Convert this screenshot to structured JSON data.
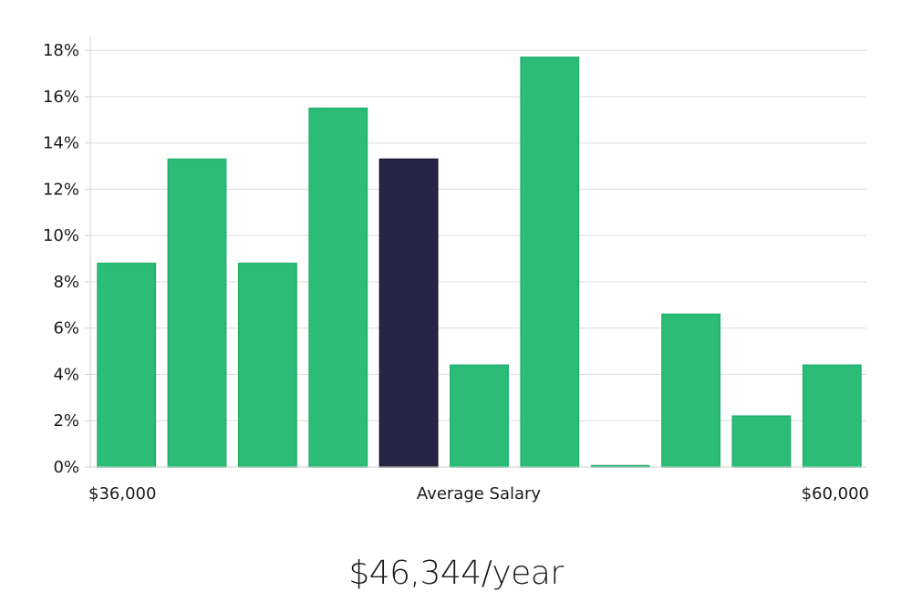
{
  "chart_data": {
    "type": "bar",
    "categories": [
      "",
      "",
      "",
      "",
      "",
      "",
      "",
      "",
      "",
      "",
      ""
    ],
    "values": [
      8.8,
      13.3,
      8.8,
      15.5,
      13.3,
      4.4,
      17.7,
      0.0,
      6.6,
      2.2,
      4.4
    ],
    "highlight_index": 4,
    "ylim": [
      0,
      18.6
    ],
    "y_ticks": [
      0,
      2,
      4,
      6,
      8,
      10,
      12,
      14,
      16,
      18
    ],
    "y_tick_format": "{v}%",
    "x_labels": {
      "left": "$36,000",
      "center": "Average Salary",
      "right": "$60,000"
    },
    "grid": true,
    "colors": {
      "bar": "#2bbd77",
      "bar_edge": "#22b06d",
      "highlight": "#282443",
      "grid": "#dddddd"
    }
  },
  "salary_text": "$46,344/year"
}
